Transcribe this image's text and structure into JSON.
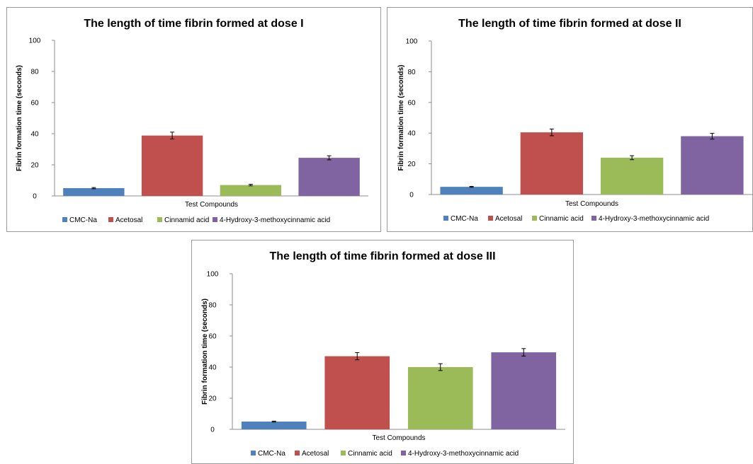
{
  "chart_data": [
    {
      "type": "bar",
      "title": "The length of time fibrin formed at dose I",
      "xlabel": "Test Compounds",
      "ylabel": "Fibrin formation time (seconds)",
      "ylim": [
        0,
        100
      ],
      "yticks": [
        "0",
        "20",
        "40",
        "60",
        "80",
        "100"
      ],
      "categories": [
        "CMC-Na",
        "Acetosal",
        "Cinnamid acid",
        "4-Hydroxy-3-methoxycinnamic acid"
      ],
      "values": [
        5,
        38.8,
        7,
        24.5
      ],
      "errors": [
        0.4,
        2.2,
        0.5,
        1.3
      ],
      "colors": [
        "#4F81BD",
        "#C0504D",
        "#9BBB59",
        "#8064A2"
      ],
      "legend": "bottom",
      "grid": false
    },
    {
      "type": "bar",
      "title": "The length of time fibrin formed at dose II",
      "xlabel": "Test Compounds",
      "ylabel": "Fibrin formation time (seconds)",
      "ylim": [
        0,
        100
      ],
      "yticks": [
        "0",
        "20",
        "40",
        "60",
        "80",
        "100"
      ],
      "categories": [
        "CMC-Na",
        "Acetosal",
        "Cinnamic acid",
        "4-Hydroxy-3-methoxycinnamic acid"
      ],
      "values": [
        5,
        40.5,
        24,
        38
      ],
      "errors": [
        0.3,
        2.2,
        1.3,
        1.9
      ],
      "colors": [
        "#4F81BD",
        "#C0504D",
        "#9BBB59",
        "#8064A2"
      ],
      "legend": "bottom",
      "grid": false
    },
    {
      "type": "bar",
      "title": "The length of time fibrin formed at dose III",
      "xlabel": "Test Compounds",
      "ylabel": "Fibrin formation time (seconds)",
      "ylim": [
        0,
        100
      ],
      "yticks": [
        "0",
        "20",
        "40",
        "60",
        "80",
        "100"
      ],
      "categories": [
        "CMC-Na",
        "Acetosal",
        "Cinnamic acid",
        "4-Hydroxy-3-methoxycinnamic acid"
      ],
      "values": [
        5,
        47,
        40,
        49.5
      ],
      "errors": [
        0.3,
        2.3,
        2.2,
        2.4
      ],
      "colors": [
        "#4F81BD",
        "#C0504D",
        "#9BBB59",
        "#8064A2"
      ],
      "legend": "bottom",
      "grid": false
    }
  ]
}
